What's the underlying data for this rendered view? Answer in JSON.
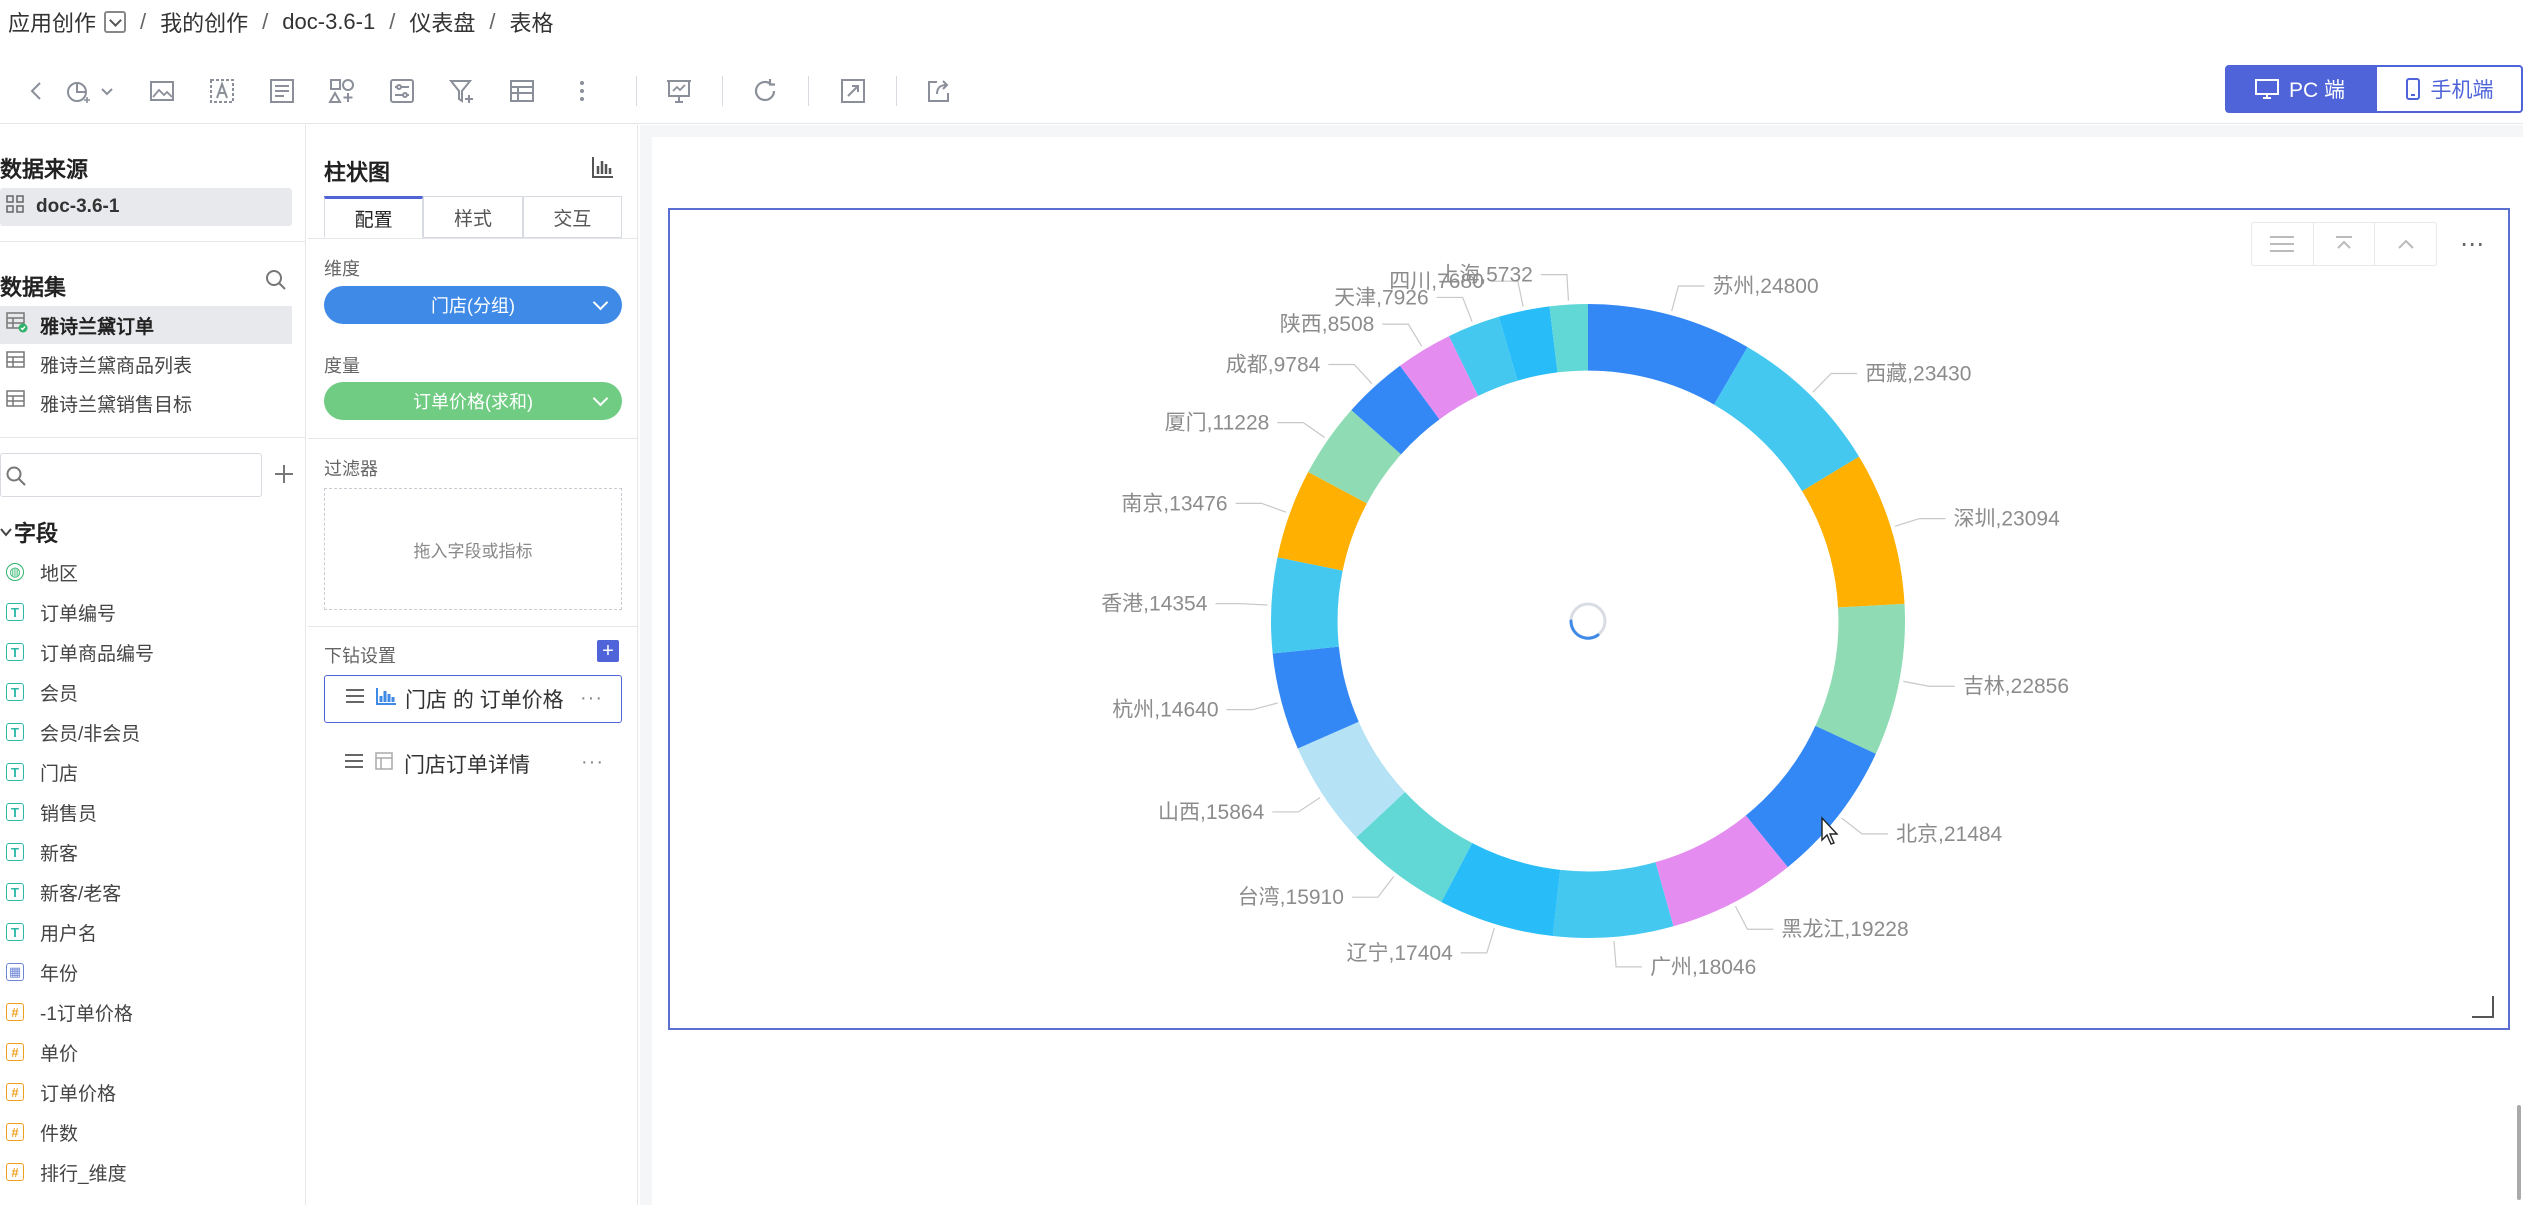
{
  "breadcrumb": {
    "root": "应用创作",
    "items": [
      "我的创作",
      "doc-3.6-1",
      "仪表盘",
      "表格"
    ]
  },
  "toolbar": {
    "pc_label": "PC 端",
    "mobile_label": "手机端"
  },
  "left_panel": {
    "data_source_title": "数据来源",
    "data_source": "doc-3.6-1",
    "dataset_title": "数据集",
    "datasets": [
      "雅诗兰黛订单",
      "雅诗兰黛商品列表",
      "雅诗兰黛销售目标"
    ],
    "fields_title": "字段",
    "fields": [
      {
        "type": "G",
        "name": "地区"
      },
      {
        "type": "T",
        "name": "订单编号"
      },
      {
        "type": "T",
        "name": "订单商品编号"
      },
      {
        "type": "T",
        "name": "会员"
      },
      {
        "type": "T",
        "name": "会员/非会员"
      },
      {
        "type": "T",
        "name": "门店"
      },
      {
        "type": "T",
        "name": "销售员"
      },
      {
        "type": "T",
        "name": "新客"
      },
      {
        "type": "T",
        "name": "新客/老客"
      },
      {
        "type": "T",
        "name": "用户名"
      },
      {
        "type": "D",
        "name": "年份"
      },
      {
        "type": "N",
        "name": "-1订单价格"
      },
      {
        "type": "N",
        "name": "单价"
      },
      {
        "type": "N",
        "name": "订单价格"
      },
      {
        "type": "N",
        "name": "件数"
      },
      {
        "type": "N",
        "name": "排行_维度"
      }
    ]
  },
  "config_panel": {
    "title": "柱状图",
    "tabs": [
      "配置",
      "样式",
      "交互"
    ],
    "dimension_label": "维度",
    "dimension_value": "门店(分组)",
    "measure_label": "度量",
    "measure_value": "订单价格(求和)",
    "filter_label": "过滤器",
    "filter_placeholder": "拖入字段或指标",
    "drill_label": "下钻设置",
    "drill_add": "+",
    "drill_items": [
      "门店 的 订单价格",
      "门店订单详情"
    ]
  },
  "chart_data": {
    "type": "pie",
    "inner_radius_ratio": 0.79,
    "slices": [
      {
        "name": "苏州",
        "value": 24800,
        "color": "#3388f5"
      },
      {
        "name": "西藏",
        "value": 23430,
        "color": "#45c8f0"
      },
      {
        "name": "深圳",
        "value": 23094,
        "color": "#ffb000"
      },
      {
        "name": "吉林",
        "value": 22856,
        "color": "#8fdcb4"
      },
      {
        "name": "北京",
        "value": 21484,
        "color": "#3388f5"
      },
      {
        "name": "黑龙江",
        "value": 19228,
        "color": "#e58cf0"
      },
      {
        "name": "广州",
        "value": 18046,
        "color": "#45c8f0"
      },
      {
        "name": "辽宁",
        "value": 17404,
        "color": "#28bdf8"
      },
      {
        "name": "台湾",
        "value": 15910,
        "color": "#62d8d6"
      },
      {
        "name": "山西",
        "value": 15864,
        "color": "#b5e3f5"
      },
      {
        "name": "杭州",
        "value": 14640,
        "color": "#3388f5"
      },
      {
        "name": "香港",
        "value": 14354,
        "color": "#45c8f0"
      },
      {
        "name": "南京",
        "value": 13476,
        "color": "#ffb000"
      },
      {
        "name": "厦门",
        "value": 11228,
        "color": "#8fdcb4"
      },
      {
        "name": "成都",
        "value": 9784,
        "color": "#3388f5"
      },
      {
        "name": "陕西",
        "value": 8508,
        "color": "#e58cf0"
      },
      {
        "name": "天津",
        "value": 7926,
        "color": "#45c8f0"
      },
      {
        "name": "四川",
        "value": 7680,
        "color": "#28bdf8"
      },
      {
        "name": "上海",
        "value": 5732,
        "color": "#62d8d6"
      }
    ],
    "labels": [
      {
        "text": "苏州,24800"
      },
      {
        "text": "西藏,23430"
      },
      {
        "text": "深圳,23094"
      },
      {
        "text": "吉林,22856"
      },
      {
        "text": "北京,21484"
      },
      {
        "text": "黑龙江,19228"
      },
      {
        "text": "广州,18046"
      },
      {
        "text": "辽宁,17404"
      },
      {
        "text": "台湾,15910"
      },
      {
        "text": "山西,15864"
      },
      {
        "text": "杭州,14640"
      },
      {
        "text": "香港,14354"
      },
      {
        "text": "南京,13476"
      },
      {
        "text": "厦门,11228"
      },
      {
        "text": "成都,9784"
      },
      {
        "text": "陕西,8508"
      },
      {
        "text": "天津,7926"
      },
      {
        "text": "四川,7680"
      },
      {
        "text": "上海,5732"
      }
    ]
  }
}
